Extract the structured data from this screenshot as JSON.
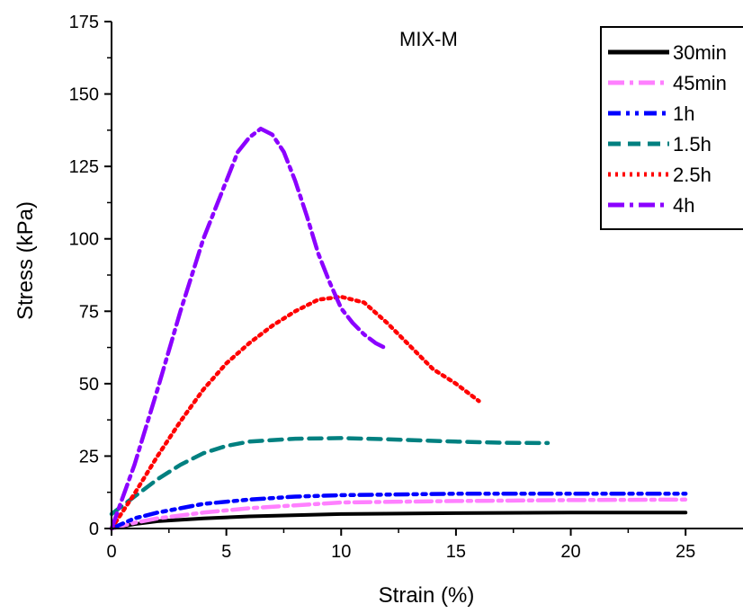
{
  "chart_data": {
    "type": "line",
    "title": "MIX-M",
    "xlabel": "Strain (%)",
    "ylabel": "Stress (kPa)",
    "xlim": [
      0,
      27.5
    ],
    "ylim": [
      0,
      175
    ],
    "xticks": [
      0,
      5,
      10,
      15,
      20,
      25
    ],
    "yticks": [
      0,
      25,
      50,
      75,
      100,
      125,
      150,
      175
    ],
    "grid": false,
    "legend_position": "top-right",
    "series": [
      {
        "name": "30min",
        "color": "#000000",
        "dash": "solid",
        "x": [
          0,
          1,
          2,
          4,
          6,
          10,
          15,
          20,
          25
        ],
        "y": [
          0,
          1.5,
          2.5,
          3.5,
          4.2,
          5,
          5.3,
          5.5,
          5.5
        ]
      },
      {
        "name": "45min",
        "color": "#ff80ff",
        "dash": "dashdot",
        "x": [
          0,
          1,
          2,
          4,
          6,
          8,
          10,
          15,
          20,
          25
        ],
        "y": [
          0,
          2,
          3.5,
          5.5,
          7,
          8,
          9,
          9.5,
          9.8,
          10
        ]
      },
      {
        "name": "1h",
        "color": "#0000ff",
        "dash": "dashdotdot",
        "x": [
          0,
          1,
          2,
          4,
          6,
          8,
          10,
          15,
          20,
          25
        ],
        "y": [
          0,
          3.5,
          5.5,
          8.5,
          10,
          11,
          11.5,
          12,
          12,
          12
        ]
      },
      {
        "name": "1.5h",
        "color": "#008080",
        "dash": "dash",
        "x": [
          0,
          1,
          2,
          3,
          4,
          5,
          6,
          8,
          10,
          12,
          15,
          17,
          19
        ],
        "y": [
          5,
          11,
          17,
          22,
          26,
          28.5,
          30,
          31,
          31.2,
          30.8,
          30,
          29.6,
          29.5
        ]
      },
      {
        "name": "2.5h",
        "color": "#ff0000",
        "dash": "dot",
        "x": [
          0,
          1,
          2,
          3,
          4,
          5,
          6,
          7,
          8,
          9,
          10,
          11,
          12,
          13,
          14,
          15,
          16
        ],
        "y": [
          0,
          12,
          25,
          37,
          48,
          57,
          64,
          70,
          75,
          79,
          80,
          78,
          71,
          63,
          55,
          50,
          44
        ]
      },
      {
        "name": "4h",
        "color": "#8b00ff",
        "dash": "dashdot",
        "x": [
          0,
          1,
          2,
          3,
          4,
          5,
          5.5,
          6,
          6.5,
          7,
          7.5,
          8,
          8.5,
          9,
          9.5,
          10,
          10.5,
          11,
          11.5,
          12
        ],
        "y": [
          0,
          22,
          48,
          75,
          100,
          120,
          130,
          135,
          138,
          136,
          130,
          120,
          108,
          95,
          85,
          76,
          71,
          67,
          64,
          62
        ]
      }
    ]
  }
}
